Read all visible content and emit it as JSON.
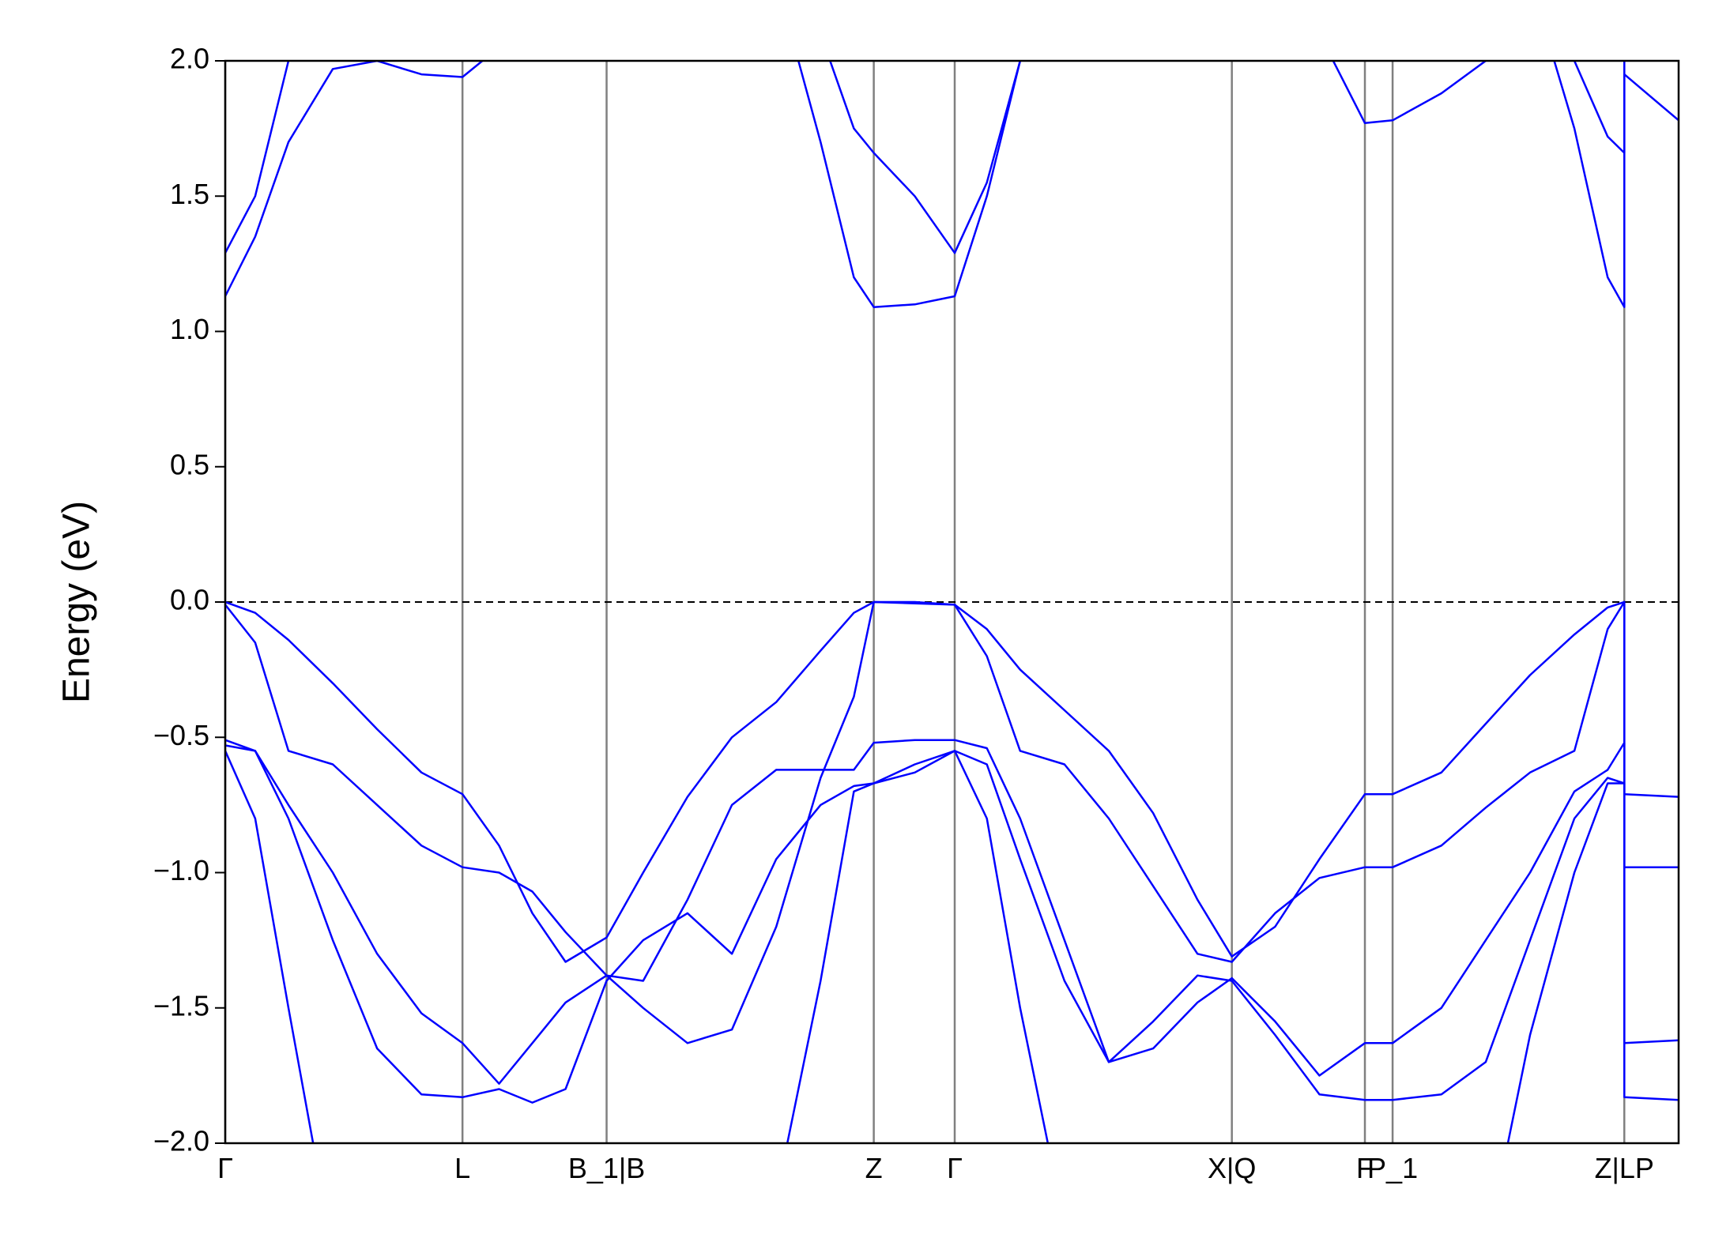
{
  "chart_data": {
    "type": "line",
    "y_label": "Energy (eV)",
    "xlim": [
      0,
      1.311
    ],
    "ylim": [
      -2.0,
      2.0
    ],
    "xticks": [
      {
        "value": 0,
        "label": "Γ"
      },
      {
        "value": 0.214,
        "label": "L"
      },
      {
        "value": 0.344,
        "label": "B_1|B"
      },
      {
        "value": 0.585,
        "label": "Z"
      },
      {
        "value": 0.658,
        "label": "Γ"
      },
      {
        "value": 0.908,
        "label": "X|Q"
      },
      {
        "value": 1.028,
        "label": "F"
      },
      {
        "value": 1.053,
        "label": "P_1"
      },
      {
        "value": 1.262,
        "label": "Z|LP"
      }
    ],
    "yticks": [
      {
        "value": -2.0,
        "label": "−2.0"
      },
      {
        "value": -1.5,
        "label": "−1.5"
      },
      {
        "value": -1.0,
        "label": "−1.0"
      },
      {
        "value": -0.5,
        "label": "−0.5"
      },
      {
        "value": 0,
        "label": "0.0"
      },
      {
        "value": 0.5,
        "label": "0.5"
      },
      {
        "value": 1.0,
        "label": "1.0"
      },
      {
        "value": 1.5,
        "label": "1.5"
      },
      {
        "value": 2.0,
        "label": "2.0"
      }
    ],
    "vertical_grid_color": "#808080",
    "fermi_level": 0,
    "x": [
      0,
      0.027,
      0.057,
      0.097,
      0.137,
      0.177,
      0.214,
      0.247,
      0.277,
      0.307,
      0.344,
      0.377,
      0.417,
      0.457,
      0.497,
      0.537,
      0.567,
      0.585,
      0.622,
      0.658,
      0.687,
      0.717,
      0.757,
      0.797,
      0.837,
      0.877,
      0.908,
      0.947,
      0.987,
      1.028,
      1.053,
      1.097,
      1.137,
      1.177,
      1.217,
      1.247,
      1.262,
      1.262,
      1.311
    ],
    "series": [
      {
        "color": "#0000ff",
        "values": [
          0,
          -0.04,
          -0.14,
          -0.3,
          -0.47,
          -0.63,
          -0.71,
          -0.9,
          -1.15,
          -1.33,
          -1.24,
          -1.0,
          -0.72,
          -0.5,
          -0.37,
          -0.18,
          -0.04,
          0,
          -0.005,
          -0.01,
          -0.1,
          -0.25,
          -0.4,
          -0.55,
          -0.78,
          -1.1,
          -1.31,
          -1.2,
          -0.95,
          -0.71,
          -0.71,
          -0.63,
          -0.45,
          -0.27,
          -0.12,
          -0.02,
          0,
          -0.71,
          -0.72
        ]
      },
      {
        "color": "#0000ff",
        "values": [
          -0.01,
          -0.15,
          -0.55,
          -0.6,
          -0.75,
          -0.9,
          -0.98,
          -1.0,
          -1.07,
          -1.22,
          -1.38,
          -1.5,
          -1.63,
          -1.58,
          -1.2,
          -0.65,
          -0.35,
          0,
          0,
          -0.01,
          -0.2,
          -0.55,
          -0.6,
          -0.8,
          -1.05,
          -1.3,
          -1.33,
          -1.15,
          -1.02,
          -0.98,
          -0.98,
          -0.9,
          -0.76,
          -0.63,
          -0.55,
          -0.1,
          0,
          -0.98,
          -0.98
        ]
      },
      {
        "color": "#0000ff",
        "values": [
          -0.51,
          -0.55,
          -0.75,
          -1.0,
          -1.3,
          -1.52,
          -1.63,
          -1.78,
          -1.63,
          -1.48,
          -1.38,
          -1.4,
          -1.1,
          -0.75,
          -0.62,
          -0.62,
          -0.62,
          -0.52,
          -0.51,
          -0.51,
          -0.54,
          -0.8,
          -1.25,
          -1.7,
          -1.65,
          -1.48,
          -1.39,
          -1.55,
          -1.75,
          -1.63,
          -1.63,
          -1.5,
          -1.25,
          -1.0,
          -0.7,
          -0.62,
          -0.52,
          -1.63,
          -1.62
        ]
      },
      {
        "color": "#0000ff",
        "values": [
          -0.53,
          -0.55,
          -0.8,
          -1.25,
          -1.65,
          -1.82,
          -1.83,
          -1.8,
          -1.85,
          -1.8,
          -1.4,
          -1.25,
          -1.15,
          -1.3,
          -0.95,
          -0.75,
          -0.68,
          -0.67,
          -0.6,
          -0.55,
          -0.6,
          -0.95,
          -1.4,
          -1.7,
          -1.55,
          -1.38,
          -1.4,
          -1.6,
          -1.82,
          -1.84,
          -1.84,
          -1.82,
          -1.7,
          -1.25,
          -0.8,
          -0.65,
          -0.67,
          -1.83,
          -1.84
        ]
      },
      {
        "color": "#0000ff",
        "values": [
          -0.55,
          -0.8,
          -1.5,
          -2.4,
          null,
          null,
          null,
          null,
          null,
          null,
          null,
          null,
          null,
          null,
          -2.2,
          -1.4,
          -0.7,
          -0.67,
          -0.63,
          -0.55,
          -0.8,
          -1.5,
          -2.3,
          null,
          null,
          null,
          null,
          null,
          null,
          null,
          null,
          null,
          -2.4,
          -1.6,
          -1.0,
          -0.67,
          -0.67,
          null,
          null
        ]
      },
      {
        "color": "#0000ff",
        "values": [
          1.13,
          1.35,
          1.7,
          1.97,
          2.0,
          1.95,
          1.94,
          2.05,
          null,
          null,
          null,
          null,
          null,
          null,
          2.3,
          1.7,
          1.2,
          1.09,
          1.1,
          1.13,
          1.5,
          2.0,
          2.4,
          null,
          null,
          null,
          null,
          null,
          2.1,
          1.77,
          1.78,
          1.88,
          2.0,
          2.2,
          2.0,
          1.72,
          1.66,
          1.95,
          1.78
        ]
      },
      {
        "color": "#0000ff",
        "values": [
          1.29,
          1.5,
          2.0,
          2.4,
          null,
          null,
          null,
          null,
          null,
          null,
          null,
          null,
          null,
          null,
          2.6,
          2.1,
          1.75,
          1.66,
          1.5,
          1.29,
          1.55,
          2.0,
          2.4,
          null,
          null,
          null,
          null,
          null,
          null,
          null,
          null,
          null,
          null,
          2.3,
          1.75,
          1.2,
          1.09,
          2.05,
          2.1
        ]
      }
    ]
  }
}
